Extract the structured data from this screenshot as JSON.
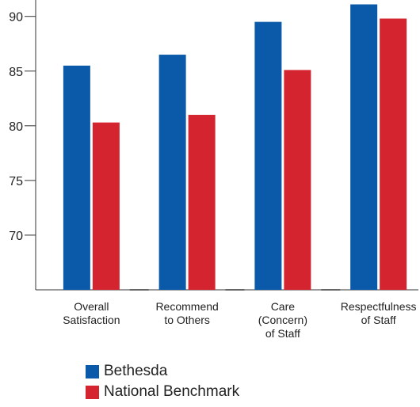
{
  "chart_data": {
    "type": "bar",
    "title": "",
    "xlabel": "",
    "ylabel": "",
    "categories": [
      [
        "Overall",
        "Satisfaction"
      ],
      [
        "Recommend",
        "to Others"
      ],
      [
        "Care",
        "(Concern)",
        "of Staff"
      ],
      [
        "Respectfulness",
        "of Staff"
      ]
    ],
    "series": [
      {
        "name": "Bethesda",
        "color": "#0b5aa9",
        "values": [
          85.5,
          86.5,
          89.5,
          91.1
        ]
      },
      {
        "name": "National Benchmark",
        "color": "#d4242f",
        "values": [
          80.3,
          81.0,
          85.1,
          89.8
        ]
      }
    ],
    "ylim": [
      65,
      91.5
    ],
    "yticks": [
      70,
      75,
      80,
      85,
      90
    ],
    "grid": false,
    "legend": "bottom-left"
  }
}
